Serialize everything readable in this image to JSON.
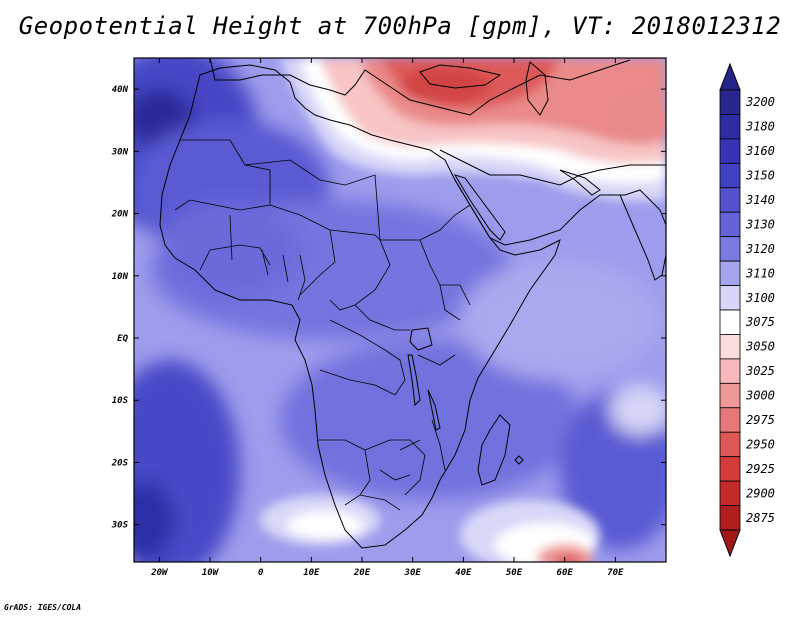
{
  "title": "Geopotential Height at 700hPa [gpm], VT: 2018012312",
  "credit": "GrADS: IGES/COLA",
  "map": {
    "lon_range": [
      -25,
      80
    ],
    "lat_range": [
      -36,
      45
    ],
    "lat_ticks": [
      {
        "label": "40N",
        "value": 40
      },
      {
        "label": "30N",
        "value": 30
      },
      {
        "label": "20N",
        "value": 20
      },
      {
        "label": "10N",
        "value": 10
      },
      {
        "label": "EQ",
        "value": 0
      },
      {
        "label": "10S",
        "value": -10
      },
      {
        "label": "20S",
        "value": -20
      },
      {
        "label": "30S",
        "value": -30
      }
    ],
    "lon_ticks": [
      {
        "label": "20W",
        "value": -20
      },
      {
        "label": "10W",
        "value": -10
      },
      {
        "label": "0",
        "value": 0
      },
      {
        "label": "10E",
        "value": 10
      },
      {
        "label": "20E",
        "value": 20
      },
      {
        "label": "30E",
        "value": 30
      },
      {
        "label": "40E",
        "value": 40
      },
      {
        "label": "50E",
        "value": 50
      },
      {
        "label": "60E",
        "value": 60
      },
      {
        "label": "70E",
        "value": 70
      }
    ]
  },
  "colorbar": {
    "levels": [
      {
        "label": "3200",
        "color": "#27278f"
      },
      {
        "label": "3180",
        "color": "#2d2da3"
      },
      {
        "label": "3160",
        "color": "#3434b5"
      },
      {
        "label": "3150",
        "color": "#4141c4"
      },
      {
        "label": "3140",
        "color": "#5252cf"
      },
      {
        "label": "3130",
        "color": "#6464d9"
      },
      {
        "label": "3120",
        "color": "#7a7ae2"
      },
      {
        "label": "3110",
        "color": "#a5a5ee"
      },
      {
        "label": "3100",
        "color": "#d6d6f8"
      },
      {
        "label": "3075",
        "color": "#ffffff"
      },
      {
        "label": "3050",
        "color": "#fcdcdc"
      },
      {
        "label": "3025",
        "color": "#f6b8b8"
      },
      {
        "label": "3000",
        "color": "#ee9898"
      },
      {
        "label": "2975",
        "color": "#e67878"
      },
      {
        "label": "2950",
        "color": "#de5858"
      },
      {
        "label": "2925",
        "color": "#d43c3c"
      },
      {
        "label": "2900",
        "color": "#c42a2a"
      },
      {
        "label": "2875",
        "color": "#b01e1e"
      }
    ],
    "top_arrow_color": "#24248a",
    "bottom_arrow_color": "#a01818"
  }
}
